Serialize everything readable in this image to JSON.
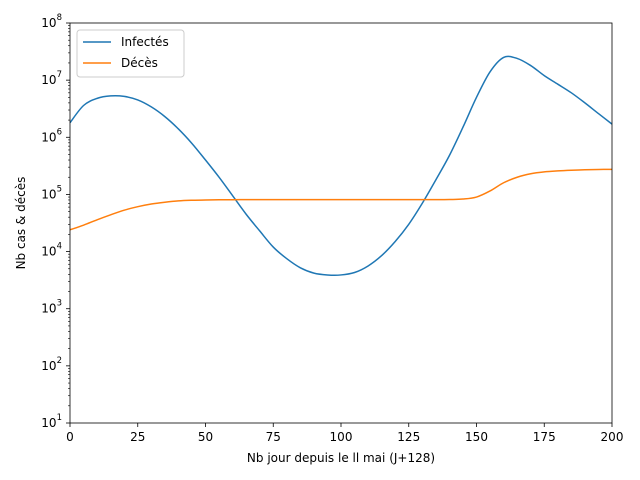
{
  "chart_data": {
    "type": "line",
    "title": "",
    "xlabel": "Nb jour depuis le ll mai (J+128)",
    "ylabel": "Nb cas & décès",
    "xlim": [
      0,
      200
    ],
    "ylim": [
      10,
      100000000
    ],
    "yscale": "log",
    "grid": false,
    "legend_position": "top-left",
    "x_ticks": [
      "0",
      "25",
      "50",
      "75",
      "100",
      "125",
      "150",
      "175",
      "200"
    ],
    "y_ticks": [
      {
        "base": "10",
        "exp": "1"
      },
      {
        "base": "10",
        "exp": "2"
      },
      {
        "base": "10",
        "exp": "3"
      },
      {
        "base": "10",
        "exp": "4"
      },
      {
        "base": "10",
        "exp": "5"
      },
      {
        "base": "10",
        "exp": "6"
      },
      {
        "base": "10",
        "exp": "7"
      },
      {
        "base": "10",
        "exp": "8"
      }
    ],
    "x": [
      0,
      5,
      10,
      15,
      20,
      25,
      30,
      35,
      40,
      45,
      50,
      55,
      60,
      65,
      70,
      75,
      80,
      85,
      90,
      95,
      100,
      105,
      110,
      115,
      120,
      125,
      130,
      135,
      140,
      145,
      150,
      155,
      160,
      165,
      170,
      175,
      180,
      185,
      190,
      195,
      200
    ],
    "series": [
      {
        "name": "Infectés",
        "color": "#1f77b4",
        "values": [
          1800000,
          3600000,
          4800000,
          5300000,
          5200000,
          4500000,
          3400000,
          2300000,
          1400000,
          780000,
          400000,
          200000,
          95000,
          45000,
          23000,
          12000,
          7500,
          5200,
          4200,
          3900,
          3900,
          4300,
          5600,
          8500,
          15000,
          30000,
          70000,
          180000,
          480000,
          1500000,
          5000000,
          14000000,
          25000000,
          24000000,
          18000000,
          12000000,
          8500000,
          6000000,
          4000000,
          2600000,
          1700000
        ]
      },
      {
        "name": "Décès",
        "color": "#ff7f0e",
        "values": [
          24000,
          29000,
          36000,
          44000,
          53000,
          61000,
          68000,
          73000,
          77000,
          79000,
          80000,
          80500,
          80800,
          81000,
          81000,
          81000,
          81000,
          81000,
          81000,
          81000,
          81000,
          81000,
          81000,
          81000,
          81000,
          81000,
          81000,
          81000,
          81500,
          83000,
          90000,
          115000,
          160000,
          200000,
          230000,
          248000,
          258000,
          265000,
          270000,
          273000,
          275000
        ]
      }
    ]
  }
}
